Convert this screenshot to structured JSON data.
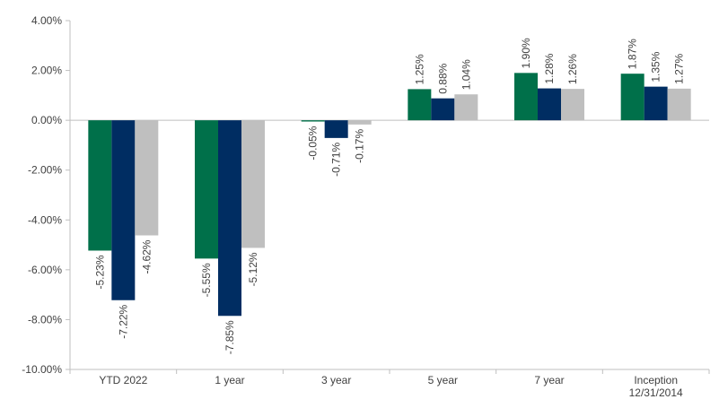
{
  "chart_data": {
    "type": "bar",
    "title": "",
    "xlabel": "",
    "ylabel": "",
    "categories": [
      [
        "YTD 2022"
      ],
      [
        "1 year"
      ],
      [
        "3 year"
      ],
      [
        "5 year"
      ],
      [
        "7 year"
      ],
      [
        "Inception",
        "12/31/2014"
      ]
    ],
    "series": [
      {
        "values": [
          -5.23,
          -5.55,
          -0.05,
          1.25,
          1.9,
          1.87
        ],
        "labels": [
          "-5.23%",
          "-5.55%",
          "-0.05%",
          "1.25%",
          "1.90%",
          "1.87%"
        ],
        "color": "#00704A"
      },
      {
        "values": [
          -7.22,
          -7.85,
          -0.71,
          0.88,
          1.28,
          1.35
        ],
        "labels": [
          "-7.22%",
          "-7.85%",
          "-0.71%",
          "0.88%",
          "1.28%",
          "1.35%"
        ],
        "color": "#002D62"
      },
      {
        "values": [
          -4.62,
          -5.12,
          -0.17,
          1.04,
          1.26,
          1.27
        ],
        "labels": [
          "-4.62%",
          "-5.12%",
          "-0.17%",
          "1.04%",
          "1.26%",
          "1.27%"
        ],
        "color": "#BFBFBF"
      }
    ],
    "ylim": [
      -10,
      4
    ],
    "yticks": [
      4,
      2,
      0,
      -2,
      -4,
      -6,
      -8,
      -10
    ],
    "ytick_labels": [
      "4.00%",
      "2.00%",
      "0.00%",
      "-2.00%",
      "-4.00%",
      "-6.00%",
      "-8.00%",
      "-10.00%"
    ],
    "grid": false,
    "legend": "none"
  }
}
